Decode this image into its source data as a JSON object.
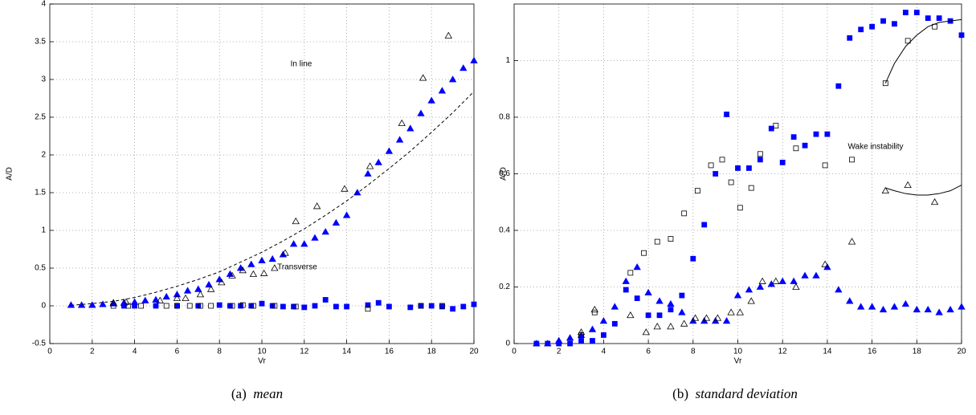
{
  "chart_data": [
    {
      "type": "scatter",
      "xlabel": "Vr",
      "ylabel": "A/D",
      "caption_tag": "(a)",
      "caption": "mean",
      "annotations": [
        "In line",
        "Transverse"
      ],
      "xlim": [
        0,
        20
      ],
      "ylim": [
        -0.5,
        4
      ],
      "xticks": [
        0,
        2,
        4,
        6,
        8,
        10,
        12,
        14,
        16,
        18,
        20
      ],
      "yticks": [
        -0.5,
        0,
        0.5,
        1,
        1.5,
        2,
        2.5,
        3,
        3.5,
        4
      ],
      "grid": true,
      "series": [
        {
          "marker": "triangle",
          "filled": true,
          "color": "#0000ff",
          "x": [
            1,
            1.5,
            2,
            2.5,
            3,
            3.5,
            4,
            4.5,
            5,
            5.5,
            6,
            6.5,
            7,
            7.5,
            8,
            8.5,
            9,
            9.5,
            10,
            10.5,
            11,
            11.5,
            12,
            12.5,
            13,
            13.5,
            14,
            14.5,
            15,
            15.5,
            16,
            16.5,
            17,
            17.5,
            18,
            18.5,
            19,
            19.5,
            20
          ],
          "values": [
            0.01,
            0.01,
            0.01,
            0.02,
            0.03,
            0.04,
            0.05,
            0.07,
            0.08,
            0.12,
            0.15,
            0.2,
            0.22,
            0.28,
            0.35,
            0.42,
            0.5,
            0.55,
            0.6,
            0.62,
            0.68,
            0.82,
            0.82,
            0.9,
            0.98,
            1.1,
            1.2,
            1.5,
            1.75,
            1.9,
            2.05,
            2.2,
            2.35,
            2.55,
            2.72,
            2.85,
            3.0,
            3.15,
            3.25
          ]
        },
        {
          "marker": "triangle",
          "filled": false,
          "color": "#000000",
          "x": [
            3,
            3.6,
            5.2,
            6,
            6.4,
            7.1,
            7.6,
            8.1,
            8.6,
            9.1,
            9.6,
            10.1,
            10.6,
            11.1,
            11.6,
            12.6,
            13.9,
            15.1,
            16.6,
            17.6,
            18.8
          ],
          "values": [
            0.04,
            0.05,
            0.07,
            0.1,
            0.1,
            0.15,
            0.22,
            0.31,
            0.4,
            0.47,
            0.42,
            0.43,
            0.5,
            0.7,
            1.12,
            1.32,
            1.55,
            1.85,
            2.42,
            3.02,
            3.58
          ]
        },
        {
          "marker": "square",
          "filled": true,
          "color": "#0000ff",
          "x": [
            3.5,
            4,
            5,
            6,
            7,
            8,
            8.5,
            9,
            9.5,
            10,
            10.5,
            11,
            11.5,
            12,
            12.5,
            13,
            13.5,
            14,
            15,
            15.5,
            16,
            17,
            17.5,
            18,
            18.5,
            19,
            19.5,
            20
          ],
          "values": [
            0,
            0,
            0,
            0,
            0,
            0.01,
            0,
            0,
            0,
            0.03,
            0,
            -0.01,
            -0.01,
            -0.02,
            0,
            0.08,
            -0.01,
            -0.01,
            0.01,
            0.04,
            -0.01,
            -0.02,
            0,
            0,
            -0.01,
            -0.04,
            -0.01,
            0.02
          ]
        },
        {
          "marker": "square",
          "filled": false,
          "color": "#000000",
          "x": [
            3,
            3.7,
            4.3,
            5.5,
            6,
            6.6,
            7.1,
            7.6,
            8.6,
            9.1,
            9.6,
            10.6,
            11.6,
            15,
            17.5,
            18.5
          ],
          "values": [
            0,
            0,
            0,
            0,
            0,
            0,
            0,
            0,
            0,
            0.01,
            0,
            0,
            -0.01,
            -0.04,
            0,
            0
          ]
        },
        {
          "marker": "none",
          "line": "dashed",
          "color": "#000000",
          "x": [
            1,
            2,
            3,
            4,
            5,
            6,
            7,
            8,
            9,
            10,
            11,
            12,
            13,
            14,
            15,
            16,
            17,
            18,
            19,
            20
          ],
          "values": [
            0.007,
            0.03,
            0.06,
            0.11,
            0.18,
            0.26,
            0.35,
            0.45,
            0.58,
            0.71,
            0.86,
            1.02,
            1.2,
            1.39,
            1.6,
            1.82,
            2.05,
            2.3,
            2.56,
            2.84
          ]
        }
      ]
    },
    {
      "type": "scatter",
      "xlabel": "Vr",
      "ylabel": "A/D",
      "caption_tag": "(b)",
      "caption": "standard deviation",
      "annotations": [
        "Wake instability"
      ],
      "xlim": [
        0,
        20
      ],
      "ylim": [
        0,
        1.2
      ],
      "xticks": [
        0,
        2,
        4,
        6,
        8,
        10,
        12,
        14,
        16,
        18,
        20
      ],
      "yticks": [
        0,
        0.2,
        0.4,
        0.6,
        0.8,
        1
      ],
      "grid": true,
      "series": [
        {
          "marker": "square",
          "filled": true,
          "color": "#0000ff",
          "x": [
            1,
            1.5,
            2,
            2.5,
            3,
            3.5,
            4,
            4.5,
            5,
            5.5,
            6,
            6.5,
            7,
            7.5,
            8,
            8.5,
            9,
            9.5,
            10,
            10.5,
            11,
            11.5,
            12,
            12.5,
            13,
            13.5,
            14,
            14.5,
            15,
            15.5,
            16,
            16.5,
            17,
            17.5,
            18,
            18.5,
            19,
            19.5,
            20
          ],
          "values": [
            0,
            0,
            0,
            0,
            0.01,
            0.01,
            0.03,
            0.07,
            0.19,
            0.16,
            0.1,
            0.1,
            0.12,
            0.17,
            0.3,
            0.42,
            0.6,
            0.81,
            0.62,
            0.62,
            0.65,
            0.76,
            0.64,
            0.73,
            0.7,
            0.74,
            0.74,
            0.91,
            1.08,
            1.11,
            1.12,
            1.14,
            1.13,
            1.17,
            1.17,
            1.15,
            1.15,
            1.14,
            1.09
          ]
        },
        {
          "marker": "triangle",
          "filled": true,
          "color": "#0000ff",
          "x": [
            1,
            1.5,
            2,
            2.5,
            3,
            3.5,
            4,
            4.5,
            5,
            5.5,
            6,
            6.5,
            7,
            7.5,
            8,
            8.5,
            9,
            9.5,
            10,
            10.5,
            11,
            11.5,
            12,
            12.5,
            13,
            13.5,
            14,
            14.5,
            15,
            15.5,
            16,
            16.5,
            17,
            17.5,
            18,
            18.5,
            19,
            19.5,
            20
          ],
          "values": [
            0,
            0,
            0.01,
            0.02,
            0.03,
            0.05,
            0.08,
            0.13,
            0.22,
            0.27,
            0.18,
            0.15,
            0.14,
            0.11,
            0.08,
            0.08,
            0.08,
            0.08,
            0.17,
            0.19,
            0.2,
            0.21,
            0.22,
            0.22,
            0.24,
            0.24,
            0.27,
            0.19,
            0.15,
            0.13,
            0.13,
            0.12,
            0.13,
            0.14,
            0.12,
            0.12,
            0.11,
            0.12,
            0.13
          ]
        },
        {
          "marker": "square",
          "filled": false,
          "color": "#000000",
          "x": [
            3,
            3.6,
            5.2,
            5.8,
            6.4,
            7,
            7.6,
            8.2,
            8.8,
            9.3,
            9.7,
            10.1,
            10.6,
            11,
            11.7,
            12.6,
            13.9,
            15.1,
            16.6,
            17.6,
            18.8
          ],
          "values": [
            0.03,
            0.11,
            0.25,
            0.32,
            0.36,
            0.37,
            0.46,
            0.54,
            0.63,
            0.65,
            0.57,
            0.48,
            0.55,
            0.67,
            0.77,
            0.69,
            0.63,
            0.65,
            0.92,
            1.07,
            1.12
          ]
        },
        {
          "marker": "triangle",
          "filled": false,
          "color": "#000000",
          "x": [
            3,
            3.6,
            5.2,
            5.9,
            6.4,
            7,
            7.6,
            8.1,
            8.6,
            9.1,
            9.7,
            10.1,
            10.6,
            11.1,
            11.7,
            12.6,
            13.9,
            15.1,
            16.6,
            17.6,
            18.8
          ],
          "values": [
            0.04,
            0.12,
            0.1,
            0.04,
            0.06,
            0.06,
            0.07,
            0.09,
            0.09,
            0.09,
            0.11,
            0.11,
            0.15,
            0.22,
            0.22,
            0.2,
            0.28,
            0.36,
            0.54,
            0.56,
            0.5
          ]
        },
        {
          "marker": "none",
          "line": "solid",
          "color": "#000000",
          "x": [
            16.6,
            17,
            17.5,
            18,
            18.5,
            19,
            19.5,
            20
          ],
          "values": [
            0.92,
            0.99,
            1.05,
            1.09,
            1.12,
            1.135,
            1.14,
            1.145
          ]
        },
        {
          "marker": "none",
          "line": "solid",
          "color": "#000000",
          "x": [
            16.6,
            17,
            17.5,
            18,
            18.5,
            19,
            19.5,
            20
          ],
          "values": [
            0.55,
            0.54,
            0.53,
            0.525,
            0.525,
            0.53,
            0.54,
            0.56
          ]
        }
      ]
    }
  ]
}
